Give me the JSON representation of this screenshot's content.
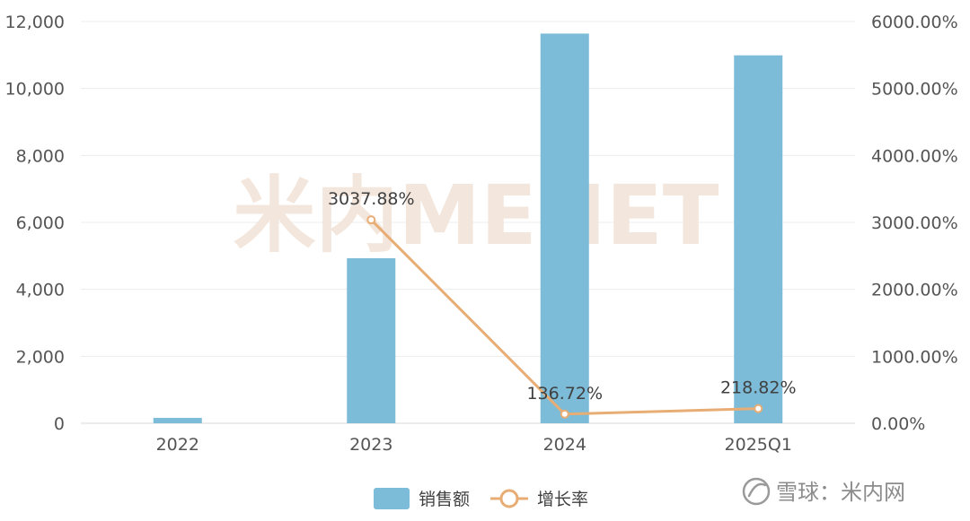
{
  "chart_data": {
    "type": "bar",
    "categories": [
      "2022",
      "2023",
      "2024",
      "2025Q1"
    ],
    "series": [
      {
        "name": "销售额",
        "type": "bar",
        "axis": "left",
        "color": "#7cbcd8",
        "values": [
          160,
          4930,
          11640,
          10990
        ]
      },
      {
        "name": "增长率",
        "type": "line",
        "axis": "right",
        "color": "#e8ad74",
        "values": [
          null,
          3037.88,
          136.72,
          218.82
        ],
        "labels": [
          "",
          "3037.88%",
          "136.72%",
          "218.82%"
        ]
      }
    ],
    "y_left": {
      "lim": [
        0,
        12000
      ],
      "ticks": [
        "0",
        "2,000",
        "4,000",
        "6,000",
        "8,000",
        "10,000",
        "12,000"
      ]
    },
    "y_right": {
      "lim": [
        0,
        6000
      ],
      "ticks": [
        "0.00%",
        "1000.00%",
        "2000.00%",
        "3000.00%",
        "4000.00%",
        "5000.00%",
        "6000.00%"
      ]
    },
    "grid": true,
    "legend": {
      "position": "bottom-center"
    }
  },
  "watermark": {
    "text": "米内MENET",
    "color": "#f3e6dc"
  },
  "corner": {
    "text": "雪球：米内网"
  }
}
